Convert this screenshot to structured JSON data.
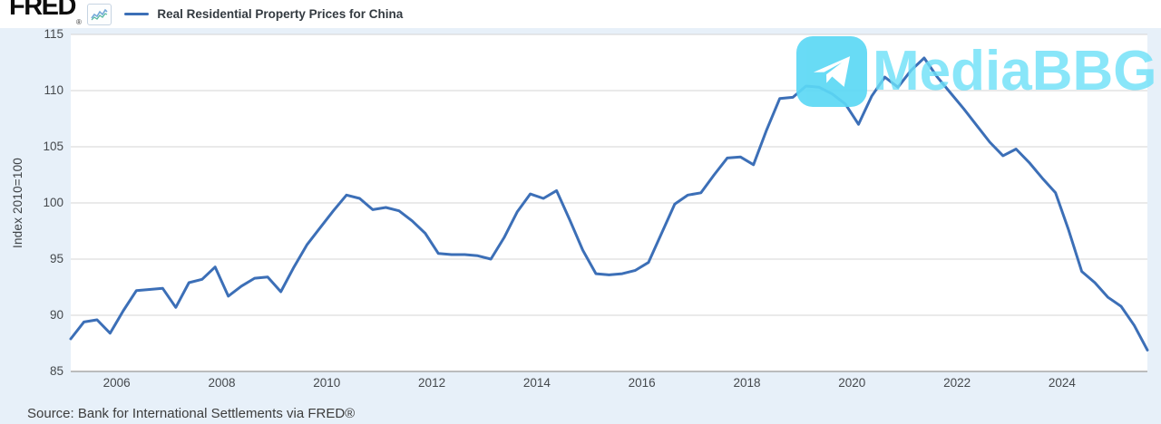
{
  "header": {
    "logo": "FRED",
    "logo_registered": "®",
    "legend_label": "Real Residential Property Prices for China"
  },
  "watermark": {
    "text": "MediaBBG"
  },
  "footer": {
    "source": "Source: Bank for International Settlements via FRED®"
  },
  "colors": {
    "line": "#3c6fb7",
    "background": "#e7f0f9",
    "plot_background": "#ffffff",
    "gridline": "#d4d4d4",
    "axis_line": "#a8a8a8",
    "tick_text": "#45494d",
    "watermark_icon": "#5cd8f5",
    "watermark_text": "#6ce0f8",
    "spark_icon_blue": "#74a9d8",
    "spark_icon_teal": "#52b79f"
  },
  "chart_data": {
    "type": "line",
    "title": "Real Residential Property Prices for China",
    "ylabel": "Index 2010=100",
    "ylim": [
      85,
      115
    ],
    "y_ticks": [
      85,
      90,
      95,
      100,
      105,
      110,
      115
    ],
    "x_tick_years": [
      2006,
      2008,
      2010,
      2012,
      2014,
      2016,
      2018,
      2020,
      2022,
      2024
    ],
    "grid": "horizontal-only",
    "legend_position": "top-left",
    "x_axis": {
      "unit": "year",
      "first_period": "2005-Q1",
      "last_period": "2025-Q3",
      "start_year_fraction": 2005.125,
      "end_year_fraction": 2025.625,
      "step": 0.25
    },
    "series": [
      {
        "name": "Real Residential Property Prices for China",
        "frequency": "quarterly",
        "values": [
          87.9,
          89.4,
          89.6,
          88.4,
          90.4,
          92.2,
          92.3,
          92.4,
          90.7,
          92.9,
          93.2,
          94.3,
          91.7,
          92.6,
          93.3,
          93.4,
          92.1,
          94.3,
          96.3,
          97.8,
          99.3,
          100.7,
          100.4,
          99.4,
          99.6,
          99.3,
          98.4,
          97.3,
          95.5,
          95.4,
          95.4,
          95.3,
          95.0,
          96.9,
          99.2,
          100.8,
          100.4,
          101.1,
          98.5,
          95.8,
          93.7,
          93.6,
          93.7,
          94.0,
          94.7,
          97.3,
          99.9,
          100.7,
          100.9,
          102.5,
          104.0,
          104.1,
          103.4,
          106.5,
          109.3,
          109.4,
          110.4,
          110.3,
          109.7,
          108.8,
          107.0,
          109.5,
          111.2,
          110.3,
          111.8,
          112.9,
          111.2,
          109.8,
          108.4,
          106.9,
          105.4,
          104.2,
          104.8,
          103.6,
          102.2,
          100.9,
          97.6,
          93.9,
          92.9,
          91.6,
          90.8,
          89.1,
          86.9
        ]
      }
    ]
  }
}
